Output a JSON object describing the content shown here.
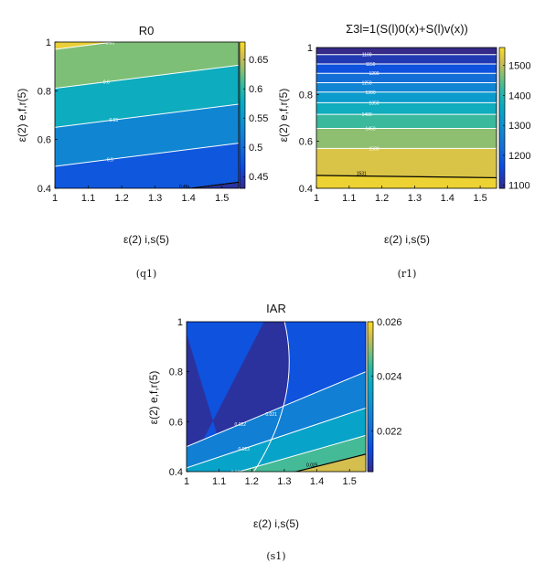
{
  "chart_data": [
    {
      "type": "heatmap",
      "panel": "q1",
      "caption": "(q1)",
      "title": "R0",
      "xlabel": "ε(2) i,s(5)",
      "ylabel": "ε(2) e,f,r(5)",
      "xlim": [
        1,
        1.55
      ],
      "ylim": [
        0.4,
        1
      ],
      "x_ticks": [
        "1",
        "1.1",
        "1.2",
        "1.3",
        "1.4",
        "1.5"
      ],
      "y_ticks": [
        "0.4",
        "0.6",
        "0.8",
        "1"
      ],
      "colorbar": {
        "min": 0.43,
        "max": 0.68,
        "ticks": [
          "0.45",
          "0.5",
          "0.55",
          "0.6",
          "0.65"
        ]
      },
      "contours": [
        {
          "level": 0.46,
          "label": "0.46",
          "left_y": 0.33,
          "right_y": 0.425
        },
        {
          "level": 0.5,
          "label": "0.5",
          "left_y": 0.49,
          "right_y": 0.585
        },
        {
          "level": 0.55,
          "label": "0.55",
          "left_y": 0.65,
          "right_y": 0.745
        },
        {
          "level": 0.6,
          "label": "0.6",
          "left_y": 0.81,
          "right_y": 0.905
        },
        {
          "level": 0.65,
          "label": "0.65",
          "left_y": 0.97,
          "right_y": 1.065
        }
      ],
      "highlight": {
        "level": 0.46,
        "label": "0.46",
        "left_y": 0.33,
        "right_y": 0.425
      }
    },
    {
      "type": "heatmap",
      "panel": "r1",
      "caption": "(r1)",
      "title": "Σ3l=1(S(l)0(x)+S(l)v(x))",
      "xlabel": "ε(2) i,s(5)",
      "ylabel": "ε(2) e,f,r(5)",
      "xlim": [
        1,
        1.55
      ],
      "ylim": [
        0.4,
        1
      ],
      "x_ticks": [
        "1",
        "1.1",
        "1.2",
        "1.3",
        "1.4",
        "1.5"
      ],
      "y_ticks": [
        "0.4",
        "0.6",
        "0.8",
        "1"
      ],
      "colorbar": {
        "min": 1090,
        "max": 1560,
        "ticks": [
          "1100",
          "1200",
          "1300",
          "1400",
          "1500"
        ]
      },
      "contours": [
        {
          "level": 1100,
          "label": "1100",
          "left_y": 0.97,
          "right_y": 0.97
        },
        {
          "level": 1150,
          "label": "1150",
          "left_y": 0.93,
          "right_y": 0.93
        },
        {
          "level": 1200,
          "label": "1200",
          "left_y": 0.89,
          "right_y": 0.89
        },
        {
          "level": 1250,
          "label": "1250",
          "left_y": 0.85,
          "right_y": 0.85
        },
        {
          "level": 1300,
          "label": "1300",
          "left_y": 0.81,
          "right_y": 0.81
        },
        {
          "level": 1350,
          "label": "1350",
          "left_y": 0.765,
          "right_y": 0.765
        },
        {
          "level": 1400,
          "label": "1400",
          "left_y": 0.715,
          "right_y": 0.715
        },
        {
          "level": 1450,
          "label": "1450",
          "left_y": 0.655,
          "right_y": 0.655
        },
        {
          "level": 1500,
          "label": "1500",
          "left_y": 0.57,
          "right_y": 0.57
        }
      ],
      "highlight": {
        "level": 1531,
        "label": "1531",
        "left_y": 0.455,
        "right_y": 0.445
      }
    },
    {
      "type": "heatmap",
      "panel": "s1",
      "caption": "(s1)",
      "title": "IAR",
      "xlabel": "ε(2) i,s(5)",
      "ylabel": "ε(2) e,f,r(5)",
      "xlim": [
        1,
        1.55
      ],
      "ylim": [
        0.4,
        1
      ],
      "x_ticks": [
        "1",
        "1.1",
        "1.2",
        "1.3",
        "1.4",
        "1.5"
      ],
      "y_ticks": [
        "0.4",
        "0.6",
        "0.8",
        "1"
      ],
      "colorbar": {
        "min": 0.0205,
        "max": 0.026,
        "ticks": [
          "0.022",
          "0.024",
          "0.026"
        ]
      },
      "contours": [
        {
          "level": 0.021,
          "label": "0.021",
          "kind": "parabola",
          "vertex_x": 1.315,
          "vertex_y": 0.84,
          "a": 0.56
        },
        {
          "level": 0.022,
          "label": "0.022",
          "left_y": 0.5,
          "right_y": 0.8
        },
        {
          "level": 0.023,
          "label": "0.023",
          "left_y": 0.415,
          "right_y": 0.655
        },
        {
          "level": 0.024,
          "label": "0.024",
          "left_y": 0.34,
          "right_y": 0.545
        },
        {
          "level": 0.025,
          "label": "0.025",
          "left_y": 0.29,
          "right_y": 0.47
        }
      ],
      "highlight": {
        "level": 0.025,
        "label": "0.025",
        "left_y": 0.29,
        "right_y": 0.47
      }
    }
  ]
}
